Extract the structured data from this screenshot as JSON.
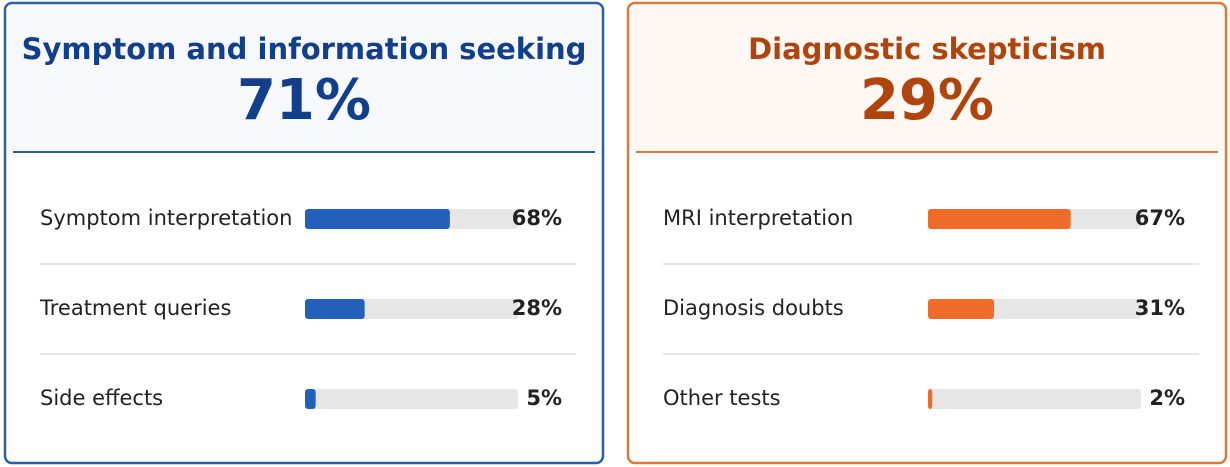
{
  "panels": [
    {
      "title": "Symptom and information seeking",
      "share": "71%",
      "xlim": [
        0,
        100
      ],
      "border": "#2c5ea3",
      "title_color": "#123f8c",
      "header_bg": "#f6f8fc",
      "bar_color": "#2360b9",
      "rows": [
        {
          "label": "Symptom interpretation",
          "value": 68,
          "value_label": "68%"
        },
        {
          "label": "Treatment queries",
          "value": 28,
          "value_label": "28%"
        },
        {
          "label": "Side effects",
          "value": 5,
          "value_label": "5%"
        }
      ]
    },
    {
      "title": "Diagnostic skepticism",
      "share": "29%",
      "xlim": [
        0,
        100
      ],
      "border": "#d9793a",
      "title_color": "#b0440d",
      "header_bg": "#fdf8f3",
      "bar_color": "#ef6b29",
      "rows": [
        {
          "label": "MRI interpretation",
          "value": 67,
          "value_label": "67%"
        },
        {
          "label": "Diagnosis doubts",
          "value": 31,
          "value_label": "31%"
        },
        {
          "label": "Other tests",
          "value": 2,
          "value_label": "2%"
        }
      ]
    }
  ]
}
